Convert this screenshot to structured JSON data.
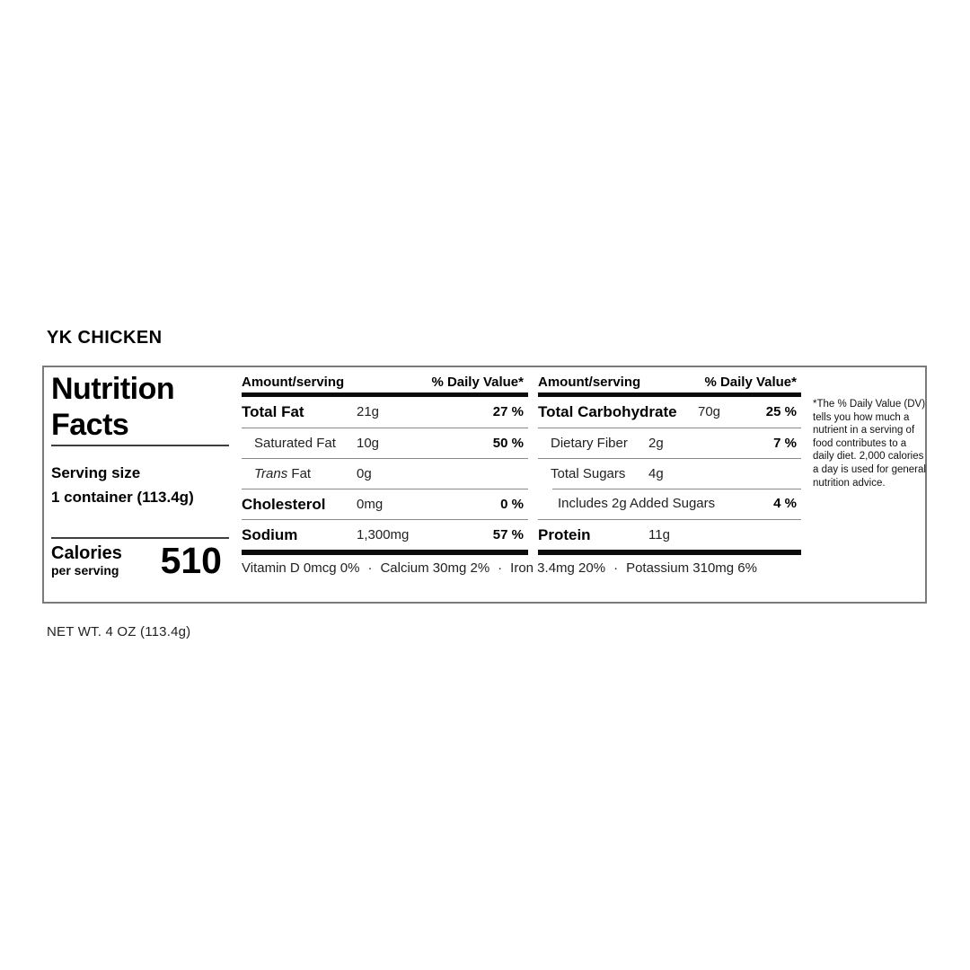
{
  "colors": {
    "border": "#7a7a7a",
    "hairline": "#8a8a8a",
    "bar": "#0c0c0c",
    "text": "#000000"
  },
  "product": {
    "title": "YK CHICKEN",
    "net_weight": "NET WT. 4 OZ (113.4g)"
  },
  "label": {
    "title_line1": "Nutrition",
    "title_line2": "Facts",
    "serving_size_label": "Serving size",
    "serving_size_value": "1 container (113.4g)",
    "calories_label": "Calories",
    "calories_sublabel": "per serving",
    "calories_value": "510",
    "amount_header": "Amount/serving",
    "dv_header": "% Daily Value*",
    "fat_table": {
      "rows": [
        {
          "name": "Total Fat",
          "amount": "21g",
          "dv": "27 %"
        },
        {
          "name": "Saturated Fat",
          "amount": "10g",
          "dv": "50 %"
        },
        {
          "name_italic": "Trans",
          "name": " Fat",
          "amount": "0g",
          "dv": ""
        },
        {
          "name": "Cholesterol",
          "amount": "0mg",
          "dv": "0 %"
        },
        {
          "name": "Sodium",
          "amount": "1,300mg",
          "dv": "57 %"
        }
      ]
    },
    "carb_table": {
      "rows": [
        {
          "name": "Total Carbohydrate",
          "amount": "70g",
          "dv": "25 %"
        },
        {
          "name": "Dietary Fiber",
          "amount": "2g",
          "dv": "7 %"
        },
        {
          "name": "Total Sugars",
          "amount": "4g",
          "dv": ""
        },
        {
          "name": "Includes 2g Added Sugars",
          "amount": "",
          "dv": "4 %"
        },
        {
          "name": "Protein",
          "amount": "11g",
          "dv": ""
        }
      ]
    },
    "micronutrients": [
      "Vitamin D 0mcg 0%",
      "Calcium 30mg 2%",
      "Iron 3.4mg 20%",
      "Potassium 310mg 6%"
    ],
    "micro_separator": "·",
    "footnote": "*The % Daily Value (DV) tells you how much a nutrient in a serving of food contributes to a daily diet. 2,000 calories a day is used for general nutrition advice."
  }
}
